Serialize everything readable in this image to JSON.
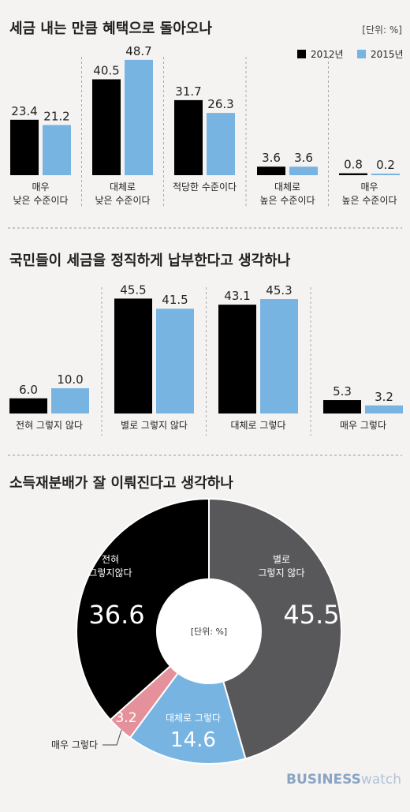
{
  "units": "[단위: %]",
  "legend": [
    {
      "label": "2012년",
      "color": "#000000"
    },
    {
      "label": "2015년",
      "color": "#77b4e2"
    }
  ],
  "chart_data": [
    {
      "type": "bar",
      "title": "세금 내는 만큼 혜택으로 돌아오나",
      "categories": [
        [
          "매우",
          "낮은 수준이다"
        ],
        [
          "대체로",
          "낮은 수준이다"
        ],
        [
          "적당한 수준이다"
        ],
        [
          "대체로",
          "높은 수준이다"
        ],
        [
          "매우",
          "높은 수준이다"
        ]
      ],
      "series": [
        {
          "name": "2012년",
          "values": [
            23.4,
            40.5,
            31.7,
            3.6,
            0.8
          ]
        },
        {
          "name": "2015년",
          "values": [
            21.2,
            48.7,
            26.3,
            3.6,
            0.2
          ]
        }
      ],
      "value_labels": [
        [
          "23.4",
          "40.5",
          "31.7",
          "3.6",
          "0.8"
        ],
        [
          "21.2",
          "48.7",
          "26.3",
          "3.6",
          "0.2"
        ]
      ],
      "ylim": [
        0,
        50
      ]
    },
    {
      "type": "bar",
      "title": "국민들이 세금을 정직하게 납부한다고 생각하나",
      "categories": [
        [
          "전혀 그렇지 않다"
        ],
        [
          "별로 그렇지 않다"
        ],
        [
          "대체로 그렇다"
        ],
        [
          "매우 그렇다"
        ]
      ],
      "series": [
        {
          "name": "2012년",
          "values": [
            6.0,
            45.5,
            43.1,
            5.3
          ]
        },
        {
          "name": "2015년",
          "values": [
            10.0,
            41.5,
            45.3,
            3.2
          ]
        }
      ],
      "value_labels": [
        [
          "6.0",
          "45.5",
          "43.1",
          "5.3"
        ],
        [
          "10.0",
          "41.5",
          "45.3",
          "3.2"
        ]
      ],
      "ylim": [
        0,
        50
      ]
    },
    {
      "type": "pie",
      "title": "소득재분배가 잘 이뤄진다고 생각하나",
      "center_label": "[단위: %]",
      "slices": [
        {
          "label": [
            "별로",
            "그렇지 않다"
          ],
          "value": 45.5,
          "value_label": "45.5",
          "color": "#58585a",
          "text_color": "#ffffff"
        },
        {
          "label": [
            "대체로 그렇다"
          ],
          "value": 14.6,
          "value_label": "14.6",
          "color": "#77b4e2",
          "text_color": "#ffffff"
        },
        {
          "label": [
            "매우 그렇다"
          ],
          "value": 3.2,
          "value_label": "3.2",
          "color": "#e5919b",
          "text_color": "#ffffff"
        },
        {
          "label": [
            "전혀",
            "그렇지않다"
          ],
          "value": 36.6,
          "value_label": "36.6",
          "color": "#000000",
          "text_color": "#ffffff"
        }
      ]
    }
  ],
  "brand": {
    "part1": "BUSINESS",
    "part2": "watch"
  }
}
